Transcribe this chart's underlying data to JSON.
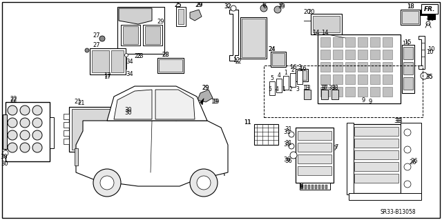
{
  "background_color": "#ffffff",
  "line_color": "#000000",
  "figsize": [
    6.4,
    3.19
  ],
  "dpi": 100,
  "part_number": "SR33-B13058"
}
